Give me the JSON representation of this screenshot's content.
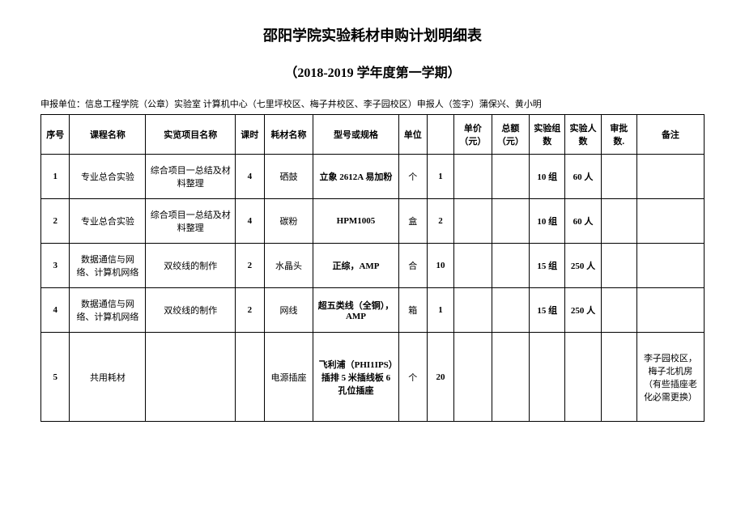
{
  "title": "邵阳学院实验耗材申购计划明细表",
  "subtitle": "（2018-2019 学年度第一学期）",
  "meta": "申报单位：信息工程学院（公章）实验室 计算机中心（七里坪校区、梅子井校区、李子园校区）申报人（签字）蒲保兴、黄小明",
  "headers": {
    "seq": "序号",
    "course": "课程名称",
    "project": "实览项目名称",
    "hours": "课时",
    "material": "耗材名称",
    "spec": "型号或规格",
    "unit": "单位",
    "blank": "",
    "price": "单价（元）",
    "total": "总额（元）",
    "groups": "实验组数",
    "people": "实验人数",
    "approve": "审批数.",
    "remark": "备注"
  },
  "rows": [
    {
      "seq": "1",
      "course": "专业总合实验",
      "project": "综合项目一总结及材料整理",
      "hours": "4",
      "material": "硒鼓",
      "spec": "立象 2612A 易加粉",
      "unit": "个",
      "blank": "1",
      "price": "",
      "total": "",
      "groups": "10 组",
      "people": "60 人",
      "approve": "",
      "remark": ""
    },
    {
      "seq": "2",
      "course": "专业总合实验",
      "project": "综合项目一总结及材料整理",
      "hours": "4",
      "material": "碳粉",
      "spec": "HPM1005",
      "unit": "盒",
      "blank": "2",
      "price": "",
      "total": "",
      "groups": "10 组",
      "people": "60 人",
      "approve": "",
      "remark": ""
    },
    {
      "seq": "3",
      "course": "数据通信与网络、计算机网络",
      "project": "双绞线的制作",
      "hours": "2",
      "material": "水晶头",
      "spec": "正综，AMP",
      "unit": "合",
      "blank": "10",
      "price": "",
      "total": "",
      "groups": "15 组",
      "people": "250 人",
      "approve": "",
      "remark": ""
    },
    {
      "seq": "4",
      "course": "数据通信与网络、计算机网络",
      "project": "双绞线的制作",
      "hours": "2",
      "material": "网线",
      "spec": "超五类线（全铜），AMP",
      "unit": "箱",
      "blank": "1",
      "price": "",
      "total": "",
      "groups": "15 组",
      "people": "250 人",
      "approve": "",
      "remark": ""
    },
    {
      "seq": "5",
      "course": "共用耗材",
      "project": "",
      "hours": "",
      "material": "电源插座",
      "spec": "飞利浦（PHI1IPS）插排 5 米插线板 6 孔位插座",
      "unit": "个",
      "blank": "20",
      "price": "",
      "total": "",
      "groups": "",
      "people": "",
      "approve": "",
      "remark": "李子园校区，梅子北机房（有些插座老化必需更换）"
    }
  ]
}
